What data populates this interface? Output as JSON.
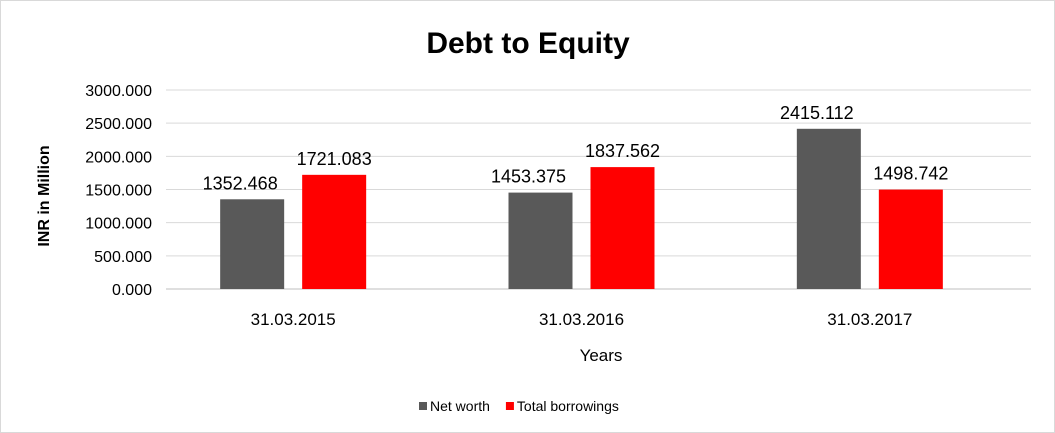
{
  "chart_data": {
    "type": "bar",
    "title": "Debt to Equity",
    "xlabel": "Years",
    "ylabel": "INR in Million",
    "categories": [
      "31.03.2015",
      "31.03.2016",
      "31.03.2017"
    ],
    "series": [
      {
        "name": "Net worth",
        "color": "#595959",
        "values": [
          1352.468,
          1453.375,
          2415.112
        ],
        "labels": [
          "1352.468",
          "1453.375",
          "2415.112"
        ]
      },
      {
        "name": "Total borrowings",
        "color": "#ff0000",
        "values": [
          1721.083,
          1837.562,
          1498.742
        ],
        "labels": [
          "1721.083",
          "1837.562",
          "1498.742"
        ]
      }
    ],
    "ylim": [
      0,
      3000
    ],
    "yticks": [
      0,
      500,
      1000,
      1500,
      2000,
      2500,
      3000
    ],
    "ytick_labels": [
      "0.000",
      "500.000",
      "1000.000",
      "1500.000",
      "2000.000",
      "2500.000",
      "3000.000"
    ],
    "grid": true,
    "legend": "bottom"
  }
}
